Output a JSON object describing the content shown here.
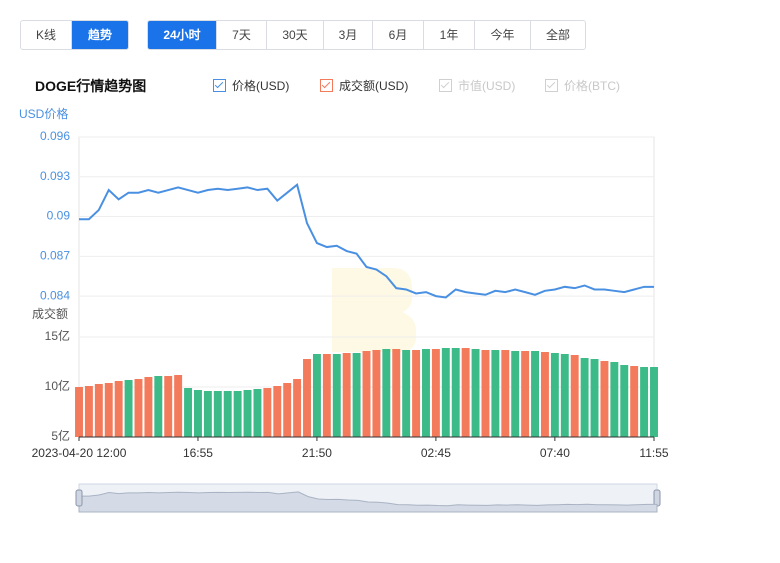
{
  "ui": {
    "tabs": [
      "K线",
      "趋势"
    ],
    "active_tab": 1,
    "ranges": [
      "24小时",
      "7天",
      "30天",
      "3月",
      "6月",
      "1年",
      "今年",
      "全部"
    ],
    "active_range": 0,
    "title": "DOGE行情趋势图",
    "legend_disabled": [
      "市值(USD)",
      "价格(BTC)"
    ]
  },
  "chart_data": [
    {
      "type": "line",
      "y_label": "USD价格",
      "series": [
        {
          "name": "价格(USD)",
          "color": "#4a90e2",
          "values": [
            0.0898,
            0.0898,
            0.0905,
            0.092,
            0.0913,
            0.0918,
            0.0918,
            0.092,
            0.0918,
            0.092,
            0.0922,
            0.092,
            0.0918,
            0.092,
            0.0921,
            0.092,
            0.0921,
            0.0922,
            0.092,
            0.0921,
            0.0912,
            0.0918,
            0.0924,
            0.0895,
            0.088,
            0.0877,
            0.0878,
            0.0874,
            0.0872,
            0.0862,
            0.086,
            0.0855,
            0.0846,
            0.0845,
            0.0842,
            0.0843,
            0.084,
            0.0839,
            0.0845,
            0.0843,
            0.0842,
            0.0841,
            0.0844,
            0.0843,
            0.0845,
            0.0843,
            0.0841,
            0.0844,
            0.0845,
            0.0847,
            0.0846,
            0.0848,
            0.0845,
            0.0845,
            0.0844,
            0.0843,
            0.0845,
            0.0847,
            0.0847
          ]
        }
      ],
      "ylim": [
        0.0825,
        0.096
      ],
      "yticks": [
        0.096,
        0.093,
        0.09,
        0.087,
        0.084
      ],
      "grid": true
    },
    {
      "type": "bar",
      "y_label": "成交额",
      "categories": [
        "2023-04-20 12:00",
        null,
        null,
        null,
        null,
        null,
        null,
        null,
        null,
        null,
        null,
        null,
        "16:55",
        null,
        null,
        null,
        null,
        null,
        null,
        null,
        null,
        null,
        null,
        null,
        "21:50",
        null,
        null,
        null,
        null,
        null,
        null,
        null,
        null,
        null,
        null,
        null,
        "02:45",
        null,
        null,
        null,
        null,
        null,
        null,
        null,
        null,
        null,
        null,
        null,
        "07:40",
        null,
        null,
        null,
        null,
        null,
        null,
        null,
        null,
        null,
        "11:55"
      ],
      "series": [
        {
          "name": "成交额(USD)",
          "color": "#f47a5c",
          "values": [
            1000000000,
            1010000000,
            1030000000,
            1040000000,
            1060000000,
            1070000000,
            1080000000,
            1100000000,
            1110000000,
            1110000000,
            1120000000,
            990000000,
            970000000,
            960000000,
            960000000,
            960000000,
            960000000,
            970000000,
            980000000,
            990000000,
            1010000000,
            1040000000,
            1080000000,
            1280000000,
            1330000000,
            1330000000,
            1330000000,
            1340000000,
            1340000000,
            1360000000,
            1370000000,
            1380000000,
            1380000000,
            1370000000,
            1370000000,
            1380000000,
            1380000000,
            1390000000,
            1390000000,
            1390000000,
            1380000000,
            1370000000,
            1370000000,
            1370000000,
            1360000000,
            1360000000,
            1360000000,
            1350000000,
            1340000000,
            1330000000,
            1320000000,
            1290000000,
            1280000000,
            1260000000,
            1250000000,
            1220000000,
            1210000000,
            1200000000,
            1200000000
          ]
        }
      ],
      "colors": [
        "#f47a5c",
        "#f47a5c",
        "#f47a5c",
        "#f47a5c",
        "#f47a5c",
        "#3cba88",
        "#f47a5c",
        "#f47a5c",
        "#3cba88",
        "#f47a5c",
        "#f47a5c",
        "#3cba88",
        "#3cba88",
        "#3cba88",
        "#3cba88",
        "#3cba88",
        "#3cba88",
        "#3cba88",
        "#3cba88",
        "#f47a5c",
        "#f47a5c",
        "#f47a5c",
        "#f47a5c",
        "#f47a5c",
        "#3cba88",
        "#f47a5c",
        "#3cba88",
        "#f47a5c",
        "#3cba88",
        "#f47a5c",
        "#f47a5c",
        "#3cba88",
        "#f47a5c",
        "#3cba88",
        "#f47a5c",
        "#3cba88",
        "#f47a5c",
        "#3cba88",
        "#3cba88",
        "#f47a5c",
        "#3cba88",
        "#f47a5c",
        "#3cba88",
        "#f47a5c",
        "#3cba88",
        "#f47a5c",
        "#3cba88",
        "#f47a5c",
        "#3cba88",
        "#3cba88",
        "#f47a5c",
        "#3cba88",
        "#3cba88",
        "#f47a5c",
        "#3cba88",
        "#3cba88",
        "#f47a5c",
        "#3cba88",
        "#3cba88"
      ],
      "ylim": [
        500000000,
        1500000000
      ],
      "yticks": [
        {
          "value": 1500000000,
          "label": "15亿"
        },
        {
          "value": 1000000000,
          "label": "10亿"
        },
        {
          "value": 500000000,
          "label": "5亿"
        }
      ]
    }
  ]
}
